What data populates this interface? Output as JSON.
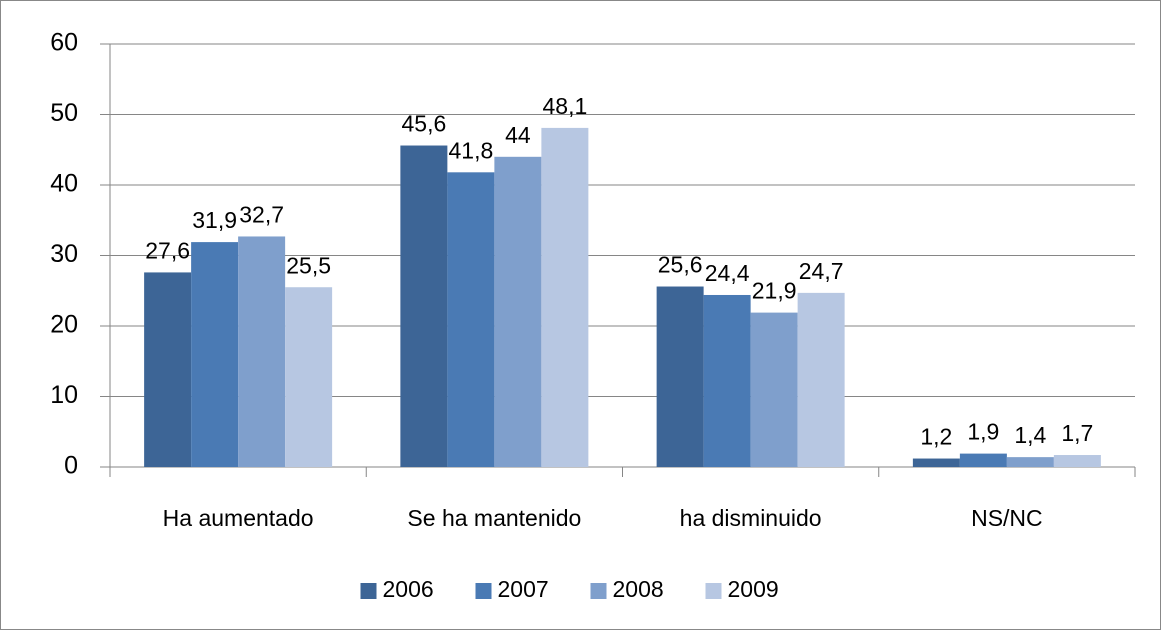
{
  "chart_data": {
    "type": "bar",
    "categories": [
      "Ha aumentado",
      "Se ha mantenido",
      "ha disminuido",
      "NS/NC"
    ],
    "series": [
      {
        "name": "2006",
        "color": "#3d6596",
        "values": [
          27.6,
          45.6,
          25.6,
          1.2
        ],
        "value_labels": [
          "27,6",
          "45,6",
          "25,6",
          "1,2"
        ]
      },
      {
        "name": "2007",
        "color": "#4a7ab4",
        "values": [
          31.9,
          41.8,
          24.4,
          1.9
        ],
        "value_labels": [
          "31,9",
          "41,8",
          "24,4",
          "1,9"
        ]
      },
      {
        "name": "2008",
        "color": "#7f9fcc",
        "values": [
          32.7,
          44,
          21.9,
          1.4
        ],
        "value_labels": [
          "32,7",
          "44",
          "21,9",
          "1,4"
        ]
      },
      {
        "name": "2009",
        "color": "#b7c7e2",
        "values": [
          25.5,
          48.1,
          24.7,
          1.7
        ],
        "value_labels": [
          "25,5",
          "48,1",
          "24,7",
          "1,7"
        ]
      }
    ],
    "ylim": [
      0,
      60
    ],
    "yticks": [
      0,
      10,
      20,
      30,
      40,
      50,
      60
    ],
    "grid": true,
    "legend": "bottom"
  }
}
